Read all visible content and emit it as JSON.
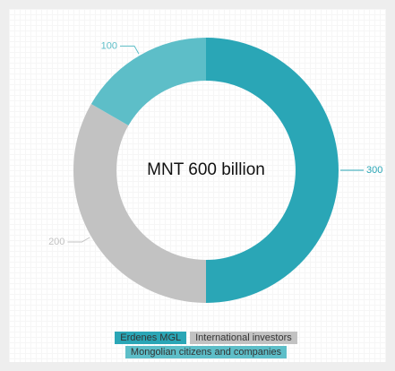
{
  "chart_data": {
    "type": "donut",
    "center_label": "MNT 600 billion",
    "series": [
      {
        "name": "Erdenes MGL",
        "color": "#2aa6b6",
        "values": [
          300
        ]
      },
      {
        "name": "International investors",
        "color": "#c2c2c2",
        "values": [
          200
        ]
      },
      {
        "name": "Mongolian citizens and companies",
        "color": "#5dbec8",
        "values": [
          100
        ]
      }
    ],
    "legend": "bottom"
  }
}
